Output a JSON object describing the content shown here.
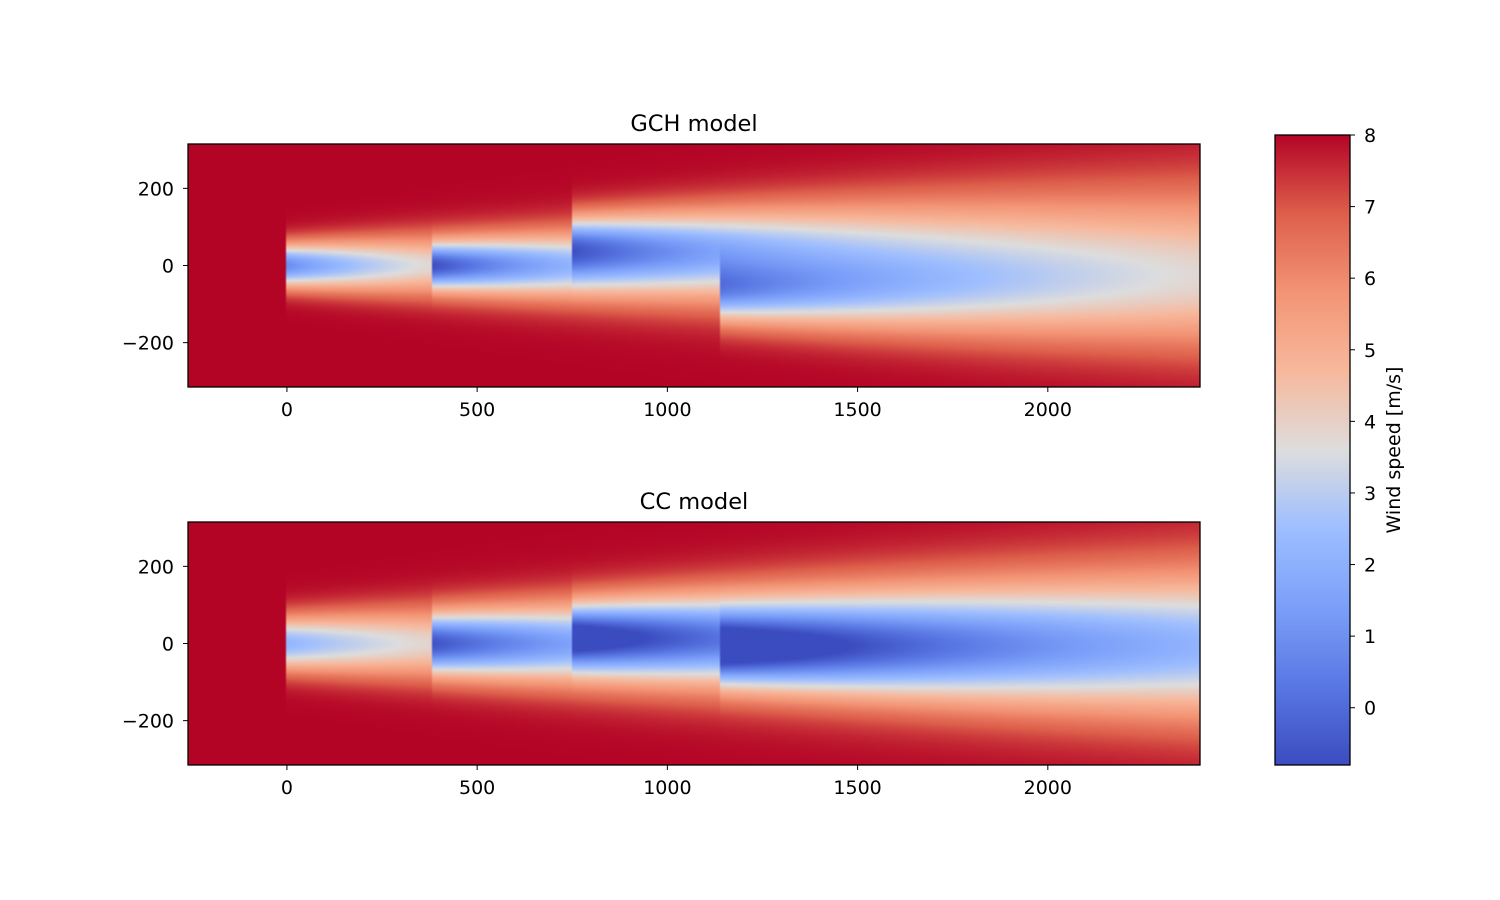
{
  "chart_data": {
    "type": "heatmap",
    "colormap": "coolwarm",
    "colors": {
      "low": "#3b4cc0",
      "mid": "#dddddd",
      "high": "#b40426"
    },
    "colorbar": {
      "label": "Wind speed [m/s]",
      "range": [
        -0.8,
        8
      ],
      "ticks": [
        0,
        1,
        2,
        3,
        4,
        5,
        6,
        7,
        8
      ]
    },
    "panels": [
      {
        "title": "GCH model",
        "xlim": [
          -260,
          2400
        ],
        "ylim": [
          -315,
          315
        ],
        "xticks": [
          0,
          500,
          1000,
          1500,
          2000
        ],
        "yticks": [
          -200,
          0,
          200
        ],
        "free_stream_speed": 8,
        "turbines": [
          {
            "x": 0,
            "y": 0,
            "min_speed": 0.9,
            "wake_length": 430,
            "wake_width": 40
          },
          {
            "x": 380,
            "y": 0,
            "min_speed": 0.3,
            "wake_length": 560,
            "wake_width": 42
          },
          {
            "x": 750,
            "y": 50,
            "min_speed": 0.6,
            "wake_length": 700,
            "wake_width": 55
          },
          {
            "x": 1140,
            "y": -60,
            "min_speed": 1.0,
            "wake_length": 900,
            "wake_width": 60
          }
        ]
      },
      {
        "title": "CC model",
        "xlim": [
          -260,
          2400
        ],
        "ylim": [
          -315,
          315
        ],
        "xticks": [
          0,
          500,
          1000,
          1500,
          2000
        ],
        "yticks": [
          -200,
          0,
          200
        ],
        "free_stream_speed": 8,
        "turbines": [
          {
            "x": 0,
            "y": 0,
            "min_speed": 2.2,
            "wake_length": 700,
            "wake_width": 50
          },
          {
            "x": 380,
            "y": 0,
            "min_speed": 0.4,
            "wake_length": 800,
            "wake_width": 55
          },
          {
            "x": 750,
            "y": 20,
            "min_speed": 0.2,
            "wake_length": 1000,
            "wake_width": 60
          },
          {
            "x": 1140,
            "y": -20,
            "min_speed": 0.5,
            "wake_length": 1200,
            "wake_width": 65
          }
        ]
      }
    ]
  }
}
